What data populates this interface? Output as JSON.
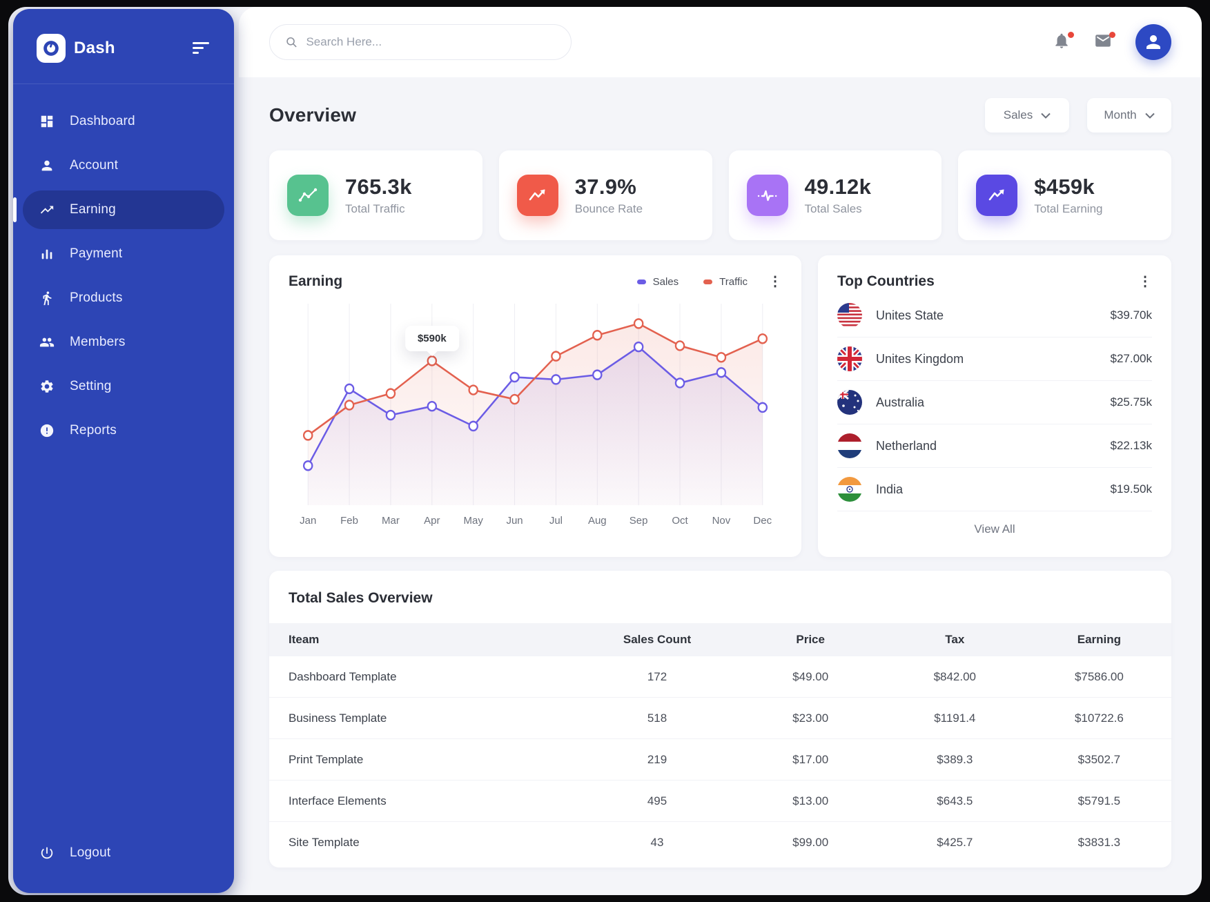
{
  "app": {
    "name": "Dash"
  },
  "topbar": {
    "search_placeholder": "Search Here..."
  },
  "sidebar": {
    "items": [
      {
        "label": "Dashboard",
        "icon": "dashboard",
        "active": false
      },
      {
        "label": "Account",
        "icon": "account",
        "active": false
      },
      {
        "label": "Earning",
        "icon": "earning",
        "active": true
      },
      {
        "label": "Payment",
        "icon": "payment",
        "active": false
      },
      {
        "label": "Products",
        "icon": "products",
        "active": false
      },
      {
        "label": "Members",
        "icon": "members",
        "active": false
      },
      {
        "label": "Setting",
        "icon": "setting",
        "active": false
      },
      {
        "label": "Reports",
        "icon": "reports",
        "active": false
      }
    ],
    "logout_label": "Logout"
  },
  "overview": {
    "title": "Overview",
    "filters": [
      {
        "label": "Sales"
      },
      {
        "label": "Month"
      }
    ]
  },
  "stats": [
    {
      "value": "765.3k",
      "label": "Total Traffic",
      "icon": "line-chart",
      "color": "#57c28f"
    },
    {
      "value": "37.9%",
      "label": "Bounce Rate",
      "icon": "zigzag",
      "color": "#f05a49"
    },
    {
      "value": "49.12k",
      "label": "Total Sales",
      "icon": "pulse",
      "color": "#a873f5"
    },
    {
      "value": "$459k",
      "label": "Total Earning",
      "icon": "trend",
      "color": "#5a49e3"
    }
  ],
  "chart_data": {
    "type": "line",
    "title": "Earning",
    "categories": [
      "Jan",
      "Feb",
      "Mar",
      "Apr",
      "May",
      "Jun",
      "Jul",
      "Aug",
      "Sep",
      "Oct",
      "Nov",
      "Dec"
    ],
    "series": [
      {
        "name": "Sales",
        "color": "#6b5ce5",
        "values": [
          140,
          470,
          357,
          395,
          310,
          520,
          510,
          530,
          650,
          495,
          540,
          390
        ]
      },
      {
        "name": "Traffic",
        "color": "#e3614f",
        "values": [
          270,
          400,
          450,
          590,
          465,
          425,
          610,
          700,
          750,
          655,
          605,
          685
        ]
      }
    ],
    "ylim": [
      0,
      800
    ],
    "grid": "vertical",
    "legend_position": "top-right",
    "tooltip": {
      "series": "Traffic",
      "index": 3,
      "label": "$590k"
    }
  },
  "top_countries": {
    "title": "Top Countries",
    "view_all": "View All",
    "items": [
      {
        "name": "Unites State",
        "value": "$39.70k",
        "flag": "us"
      },
      {
        "name": "Unites Kingdom",
        "value": "$27.00k",
        "flag": "uk"
      },
      {
        "name": "Australia",
        "value": "$25.75k",
        "flag": "au"
      },
      {
        "name": "Netherland",
        "value": "$22.13k",
        "flag": "nl"
      },
      {
        "name": "India",
        "value": "$19.50k",
        "flag": "in"
      }
    ]
  },
  "sales_table": {
    "title": "Total Sales Overview",
    "columns": [
      "Iteam",
      "Sales Count",
      "Price",
      "Tax",
      "Earning"
    ],
    "rows": [
      [
        "Dashboard Template",
        "172",
        "$49.00",
        "$842.00",
        "$7586.00"
      ],
      [
        "Business Template",
        "518",
        "$23.00",
        "$1191.4",
        "$10722.6"
      ],
      [
        "Print Template",
        "219",
        "$17.00",
        "$389.3",
        "$3502.7"
      ],
      [
        "Interface Elements",
        "495",
        "$13.00",
        "$643.5",
        "$5791.5"
      ],
      [
        "Site Template",
        "43",
        "$99.00",
        "$425.7",
        "$3831.3"
      ]
    ]
  }
}
